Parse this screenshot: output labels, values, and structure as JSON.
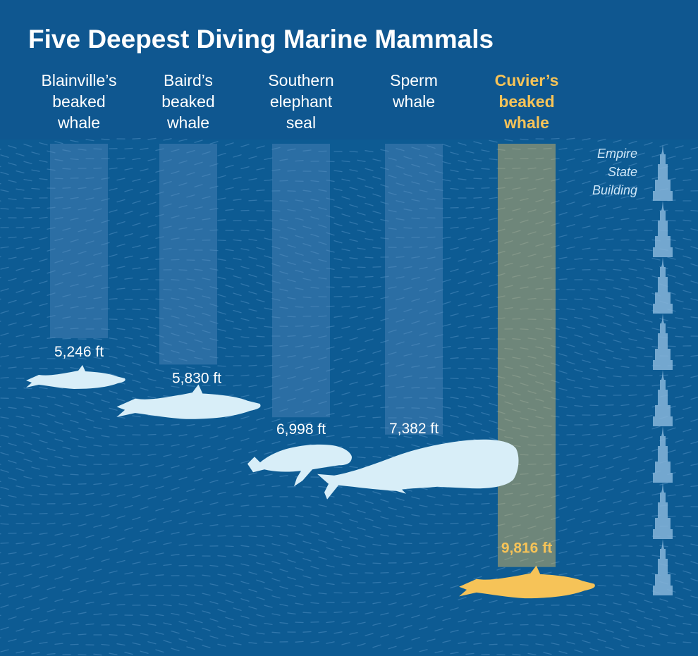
{
  "colors": {
    "sky": "#0f5790",
    "sea": "#0d5b93",
    "column": "#5b8fc0",
    "animal": "#d8eef8",
    "highlight": "#f6c358",
    "reference": "#86b5d9"
  },
  "chart_data": {
    "type": "bar",
    "title": "Five Deepest Diving Marine Mammals",
    "unit": "ft",
    "categories": [
      [
        "Blainville’s",
        "beaked",
        "whale"
      ],
      [
        "Baird’s",
        "beaked",
        "whale"
      ],
      [
        "Southern",
        "elephant",
        "seal"
      ],
      [
        "Sperm",
        "whale"
      ],
      [
        "Cuvier’s",
        "beaked",
        "whale"
      ]
    ],
    "values": [
      5246,
      5830,
      6998,
      7382,
      9816
    ],
    "value_labels": [
      "5,246 ft",
      "5,830 ft",
      "6,998 ft",
      "7,382 ft",
      "9,816 ft"
    ],
    "animal_icons": [
      "beaked-whale-icon",
      "beaked-whale-icon",
      "elephant-seal-icon",
      "sperm-whale-icon",
      "beaked-whale-icon"
    ],
    "highlight_index": 4,
    "orientation": "downward",
    "reference": {
      "label": [
        "Empire",
        "State",
        "Building"
      ],
      "icon": "empire-state-building-icon",
      "count": 8
    }
  }
}
